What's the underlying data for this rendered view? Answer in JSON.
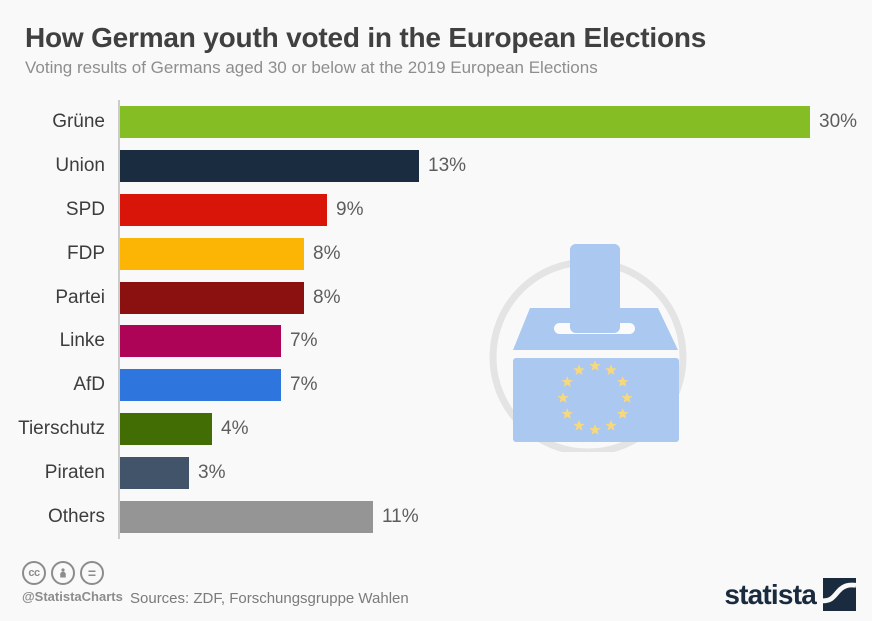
{
  "header": {
    "title": "How German youth voted in the European Elections",
    "subtitle": "Voting results of Germans aged 30 or below at the 2019 European Elections"
  },
  "chart_data": {
    "type": "bar",
    "orientation": "horizontal",
    "title": "How German youth voted in the European Elections",
    "subtitle": "Voting results of Germans aged 30 or below at the 2019 European Elections",
    "categories": [
      "Grüne",
      "Union",
      "SPD",
      "FDP",
      "Partei",
      "Linke",
      "AfD",
      "Tierschutz",
      "Piraten",
      "Others"
    ],
    "values": [
      30,
      13,
      9,
      8,
      8,
      7,
      7,
      4,
      3,
      11
    ],
    "value_labels": [
      "30%",
      "13%",
      "9%",
      "8%",
      "8%",
      "7%",
      "7%",
      "4%",
      "3%",
      "11%"
    ],
    "bar_colors": [
      "#85bd25",
      "#1a2c40",
      "#d91408",
      "#fcb405",
      "#8a1110",
      "#ae0457",
      "#2e76dd",
      "#416d04",
      "#41546a",
      "#959595"
    ],
    "unit": "%",
    "xlim": [
      0,
      30
    ],
    "grid": false,
    "legend": false,
    "axis_line_color": "#cbcbcb"
  },
  "illustration": {
    "name": "eu-ballot-box",
    "box_color": "#aac8f0",
    "star_color": "#f7d87e",
    "backdrop_circle_color": "#e4e4e4",
    "slot_color": "#fbfbfb",
    "star_count": 12
  },
  "footer": {
    "license": {
      "cc_glyph": "cc",
      "nd_glyph": "="
    },
    "handle": "@StatistaCharts",
    "sources": "Sources: ZDF, Forschungsgruppe Wahlen",
    "brand": "statista",
    "brand_color": "#1a2b3f"
  }
}
